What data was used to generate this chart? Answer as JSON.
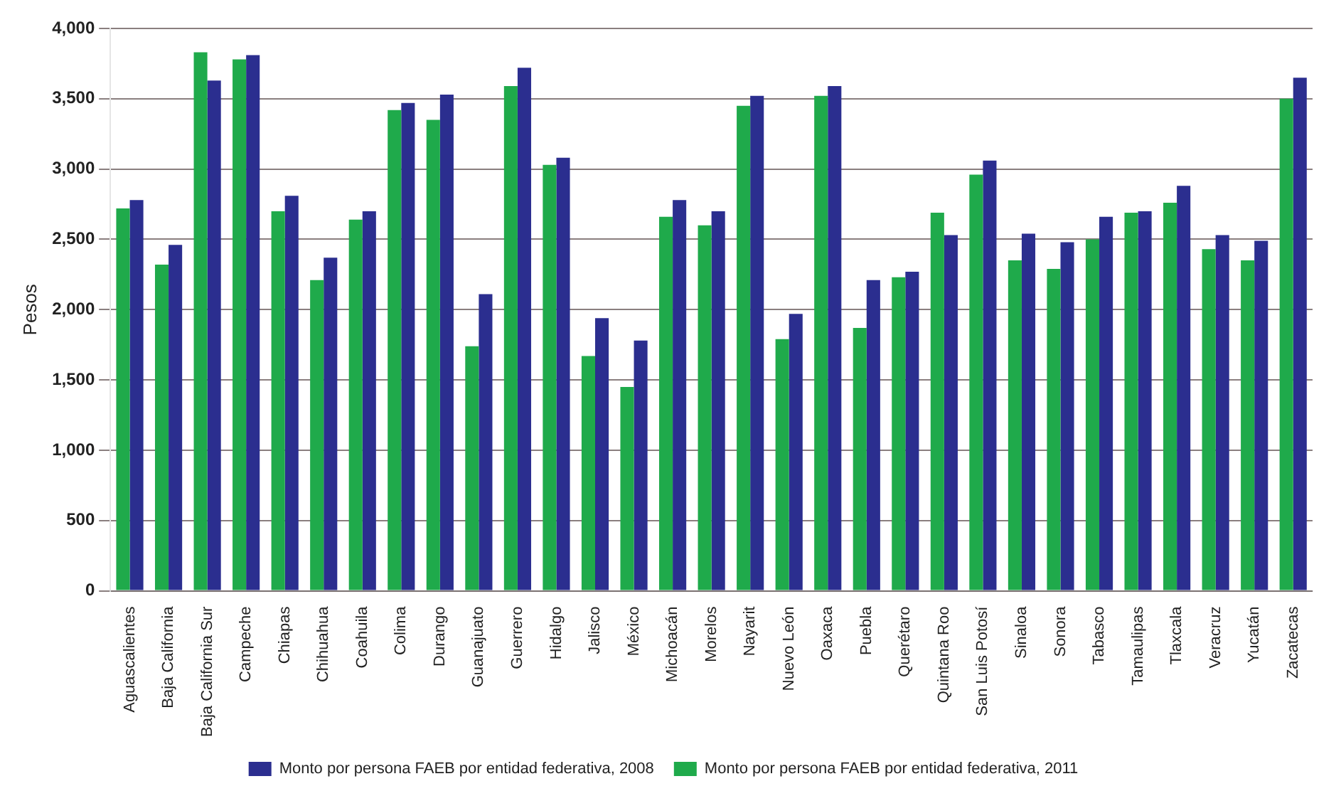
{
  "chart_data": {
    "type": "bar",
    "ylabel": "Pesos",
    "categories": [
      "Aguascalientes",
      "Baja California",
      "Baja California Sur",
      "Campeche",
      "Chiapas",
      "Chihuahua",
      "Coahuila",
      "Colima",
      "Durango",
      "Guanajuato",
      "Guerrero",
      "Hidalgo",
      "Jalisco",
      "México",
      "Michoacán",
      "Morelos",
      "Nayarit",
      "Nuevo León",
      "Oaxaca",
      "Puebla",
      "Querétaro",
      "Quintana Roo",
      "San Luis Potosí",
      "Sinaloa",
      "Sonora",
      "Tabasco",
      "Tamaulipas",
      "Tlaxcala",
      "Veracruz",
      "Yucatán",
      "Zacatecas"
    ],
    "series": [
      {
        "name": "Monto por persona FAEB por entidad federativa, 2011",
        "color": "#1faa4b",
        "values": [
          2720,
          2320,
          3830,
          3780,
          2700,
          2210,
          2640,
          3420,
          3350,
          1740,
          3590,
          3030,
          1670,
          1450,
          2660,
          2600,
          3450,
          1790,
          3520,
          1870,
          2230,
          2690,
          2960,
          2350,
          2290,
          2500,
          2690,
          2760,
          2430,
          2350,
          3500
        ]
      },
      {
        "name": "Monto por persona FAEB por entidad federativa, 2008",
        "color": "#2b2e8f",
        "values": [
          2780,
          2460,
          3630,
          3810,
          2810,
          2370,
          2700,
          3470,
          3530,
          2110,
          3720,
          3080,
          1940,
          1780,
          2780,
          2700,
          3520,
          1970,
          3590,
          2210,
          2270,
          2530,
          3060,
          2540,
          2480,
          2660,
          2700,
          2880,
          2530,
          2490,
          3650
        ]
      }
    ],
    "ylim": [
      0,
      4000
    ],
    "yticks": [
      {
        "value": 0,
        "label": "0"
      },
      {
        "value": 500,
        "label": "500"
      },
      {
        "value": 1000,
        "label": "1,000"
      },
      {
        "value": 1500,
        "label": "1,500"
      },
      {
        "value": 2000,
        "label": "2,000"
      },
      {
        "value": 2500,
        "label": "2,500"
      },
      {
        "value": 3000,
        "label": "3,000"
      },
      {
        "value": 3500,
        "label": "3,500"
      },
      {
        "value": 4000,
        "label": "4,000"
      }
    ],
    "grid": "y",
    "legend": "bottom"
  }
}
